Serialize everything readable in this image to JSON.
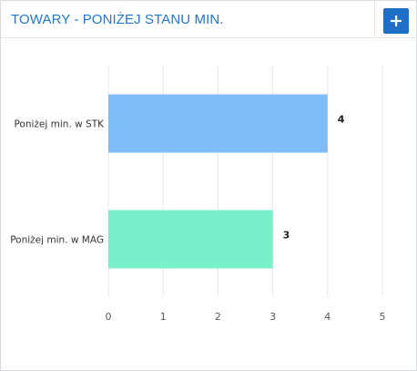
{
  "header": {
    "title": "TOWARY - PONIŻEJ STANU MIN.",
    "add_icon": "plus-icon"
  },
  "colors": {
    "title": "#2178c9",
    "button": "#1f6fc6",
    "series": [
      "#7fbdf8",
      "#7af0ca"
    ],
    "grid": "#e6e8eb"
  },
  "chart_data": {
    "type": "bar",
    "orientation": "horizontal",
    "title": "",
    "xlabel": "",
    "ylabel": "",
    "categories": [
      "Poniżej min. w STK",
      "Poniżej min. w MAG"
    ],
    "values": [
      4,
      3
    ],
    "data_labels": [
      "4",
      "3"
    ],
    "xlim": [
      0,
      5
    ],
    "xticks": [
      "0",
      "1",
      "2",
      "3",
      "4",
      "5"
    ],
    "grid": true,
    "legend": "none"
  }
}
